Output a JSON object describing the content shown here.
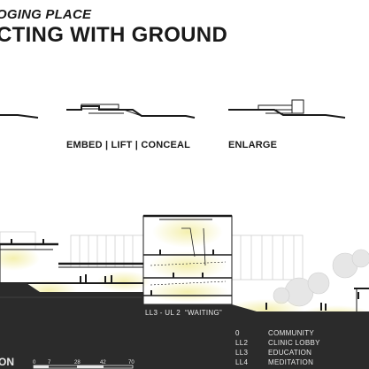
{
  "title": {
    "kicker": "OGING PLACE",
    "headline": "CTING WITH GROUND"
  },
  "diagram_captions": {
    "embed": "EMBED | LIFT | CONCEAL",
    "enlarge": "ENLARGE"
  },
  "section_labels": {
    "ll3_ul2": "LL3 - UL 2",
    "waiting": "“WAITING”"
  },
  "level_legend": [
    {
      "level": "0",
      "name": "COMMUNITY"
    },
    {
      "level": "LL2",
      "name": "CLINIC LOBBY"
    },
    {
      "level": "LL3",
      "name": "EDUCATION"
    },
    {
      "level": "LL4",
      "name": "MEDITATION"
    }
  ],
  "scale_bar": {
    "ticks": [
      "0",
      "7",
      "28",
      "42",
      "70"
    ]
  },
  "bottom_left_text": "ON",
  "colors": {
    "ground": "#2b2b2b",
    "glow": "#f3eea6",
    "linework": "#1a1a1a"
  }
}
